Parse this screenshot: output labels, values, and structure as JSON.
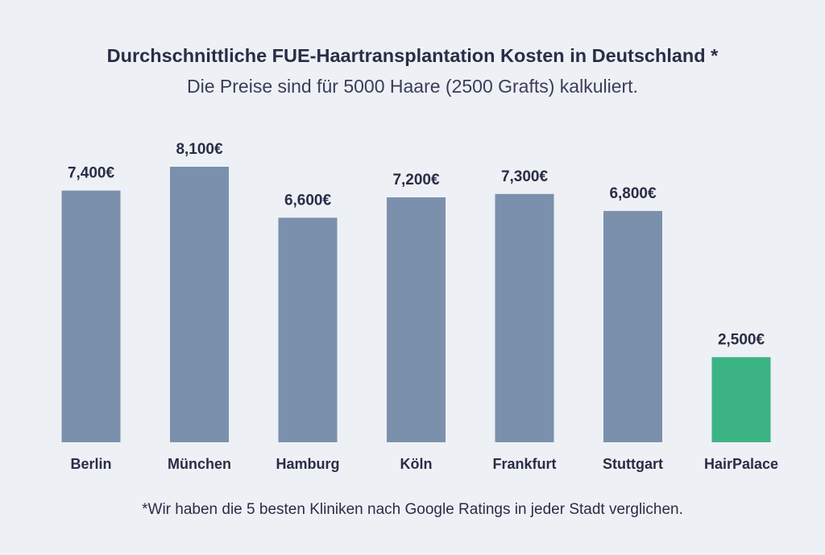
{
  "chart_data": {
    "type": "bar",
    "title": "Durchschnittliche FUE-Haartransplantation Kosten in Deutschland *",
    "subtitle": "Die Preise sind für 5000 Haare (2500 Grafts) kalkuliert.",
    "categories": [
      "Berlin",
      "München",
      "Hamburg",
      "Köln",
      "Frankfurt",
      "Stuttgart",
      "HairPalace"
    ],
    "values": [
      7400,
      8100,
      6600,
      7200,
      7300,
      6800,
      2500
    ],
    "value_labels": [
      "7,400€",
      "8,100€",
      "6,600€",
      "7,200€",
      "7,300€",
      "6,800€",
      "2,500€"
    ],
    "bar_colors": [
      "#7b90ad",
      "#7b90ad",
      "#7b90ad",
      "#7b90ad",
      "#7b90ad",
      "#7b90ad",
      "#3bb385"
    ],
    "xlabel": "",
    "ylabel": "",
    "ylim": [
      0,
      8100
    ],
    "grid": false,
    "legend": "none",
    "footnote": "*Wir haben die 5 besten Kliniken nach Google Ratings in jeder Stadt verglichen."
  }
}
